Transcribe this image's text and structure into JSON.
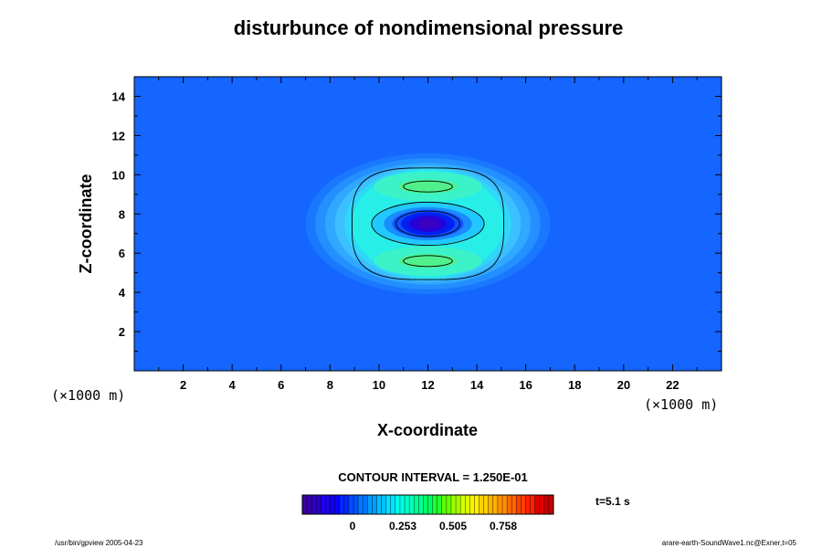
{
  "chart_data": {
    "type": "heatmap",
    "title": "disturbunce of nondimensional pressure",
    "xlabel": "X-coordinate",
    "ylabel": "Z-coordinate",
    "x_unit": "(×1000 m)",
    "y_unit": "(×1000 m)",
    "xlim": [
      0,
      24
    ],
    "ylim": [
      0,
      15
    ],
    "x_ticks": [
      2,
      4,
      6,
      8,
      10,
      12,
      14,
      16,
      18,
      20,
      22
    ],
    "y_ticks": [
      2,
      4,
      6,
      8,
      10,
      12,
      14
    ],
    "x_minor_step": 1,
    "y_minor_step": 1,
    "background_color": "#1565ff",
    "feature": {
      "center": [
        12,
        7.5
      ],
      "colorscale": [
        "#3a00c8",
        "#0000ff",
        "#1565ff",
        "#00a0ff",
        "#00e6e6",
        "#00ffa0",
        "#36ff00",
        "#c8ff00",
        "#ffd700",
        "#ff6a00",
        "#e00000"
      ],
      "layers": [
        {
          "shape": "ellipse",
          "cx": 12,
          "cz": 7.5,
          "rx": 5.0,
          "rz": 3.6,
          "color": "#1a78ff"
        },
        {
          "shape": "ellipse",
          "cx": 12,
          "cz": 7.5,
          "rx": 4.6,
          "rz": 3.35,
          "color": "#2490ff"
        },
        {
          "shape": "ellipse",
          "cx": 12,
          "cz": 7.5,
          "rx": 4.2,
          "rz": 3.1,
          "color": "#30a8ff"
        },
        {
          "shape": "ellipse",
          "cx": 12,
          "cz": 7.5,
          "rx": 3.8,
          "rz": 2.95,
          "color": "#3cc0ff"
        },
        {
          "shape": "ellipse",
          "cx": 12,
          "cz": 7.5,
          "rx": 3.4,
          "rz": 2.85,
          "color": "#30d8f8"
        },
        {
          "shape": "ellipse",
          "cx": 12,
          "cz": 7.5,
          "rx": 3.1,
          "rz": 2.75,
          "color": "#28eee8"
        },
        {
          "shape": "ellipse",
          "cx": 12,
          "cz": 9.4,
          "rx": 2.2,
          "rz": 0.75,
          "color": "#3cf2c8"
        },
        {
          "shape": "ellipse",
          "cx": 12,
          "cz": 5.6,
          "rx": 2.2,
          "rz": 0.75,
          "color": "#3cf2c8"
        },
        {
          "shape": "ellipse",
          "cx": 12,
          "cz": 9.4,
          "rx": 1.2,
          "rz": 0.35,
          "color": "#50f08c"
        },
        {
          "shape": "ellipse",
          "cx": 12,
          "cz": 5.6,
          "rx": 1.2,
          "rz": 0.35,
          "color": "#50f08c"
        },
        {
          "shape": "ellipse",
          "cx": 12,
          "cz": 7.5,
          "rx": 2.3,
          "rz": 1.05,
          "color": "#20c8ff"
        },
        {
          "shape": "ellipse",
          "cx": 12,
          "cz": 7.5,
          "rx": 1.8,
          "rz": 0.85,
          "color": "#1a8cff"
        },
        {
          "shape": "ellipse",
          "cx": 12,
          "cz": 7.5,
          "rx": 1.45,
          "rz": 0.72,
          "color": "#1050ff"
        },
        {
          "shape": "ellipse",
          "cx": 12,
          "cz": 7.5,
          "rx": 1.1,
          "rz": 0.58,
          "color": "#0020f0"
        },
        {
          "shape": "ellipse",
          "cx": 12,
          "cz": 7.5,
          "rx": 0.75,
          "rz": 0.42,
          "color": "#2800d8"
        },
        {
          "shape": "ellipse",
          "cx": 12,
          "cz": 7.5,
          "rx": 0.4,
          "rz": 0.25,
          "color": "#3a00c0"
        }
      ],
      "contours": [
        {
          "shape": "superellipse",
          "cx": 12,
          "cz": 7.5,
          "rx": 3.1,
          "rz": 2.85,
          "n": 3.2
        },
        {
          "shape": "ellipse",
          "cx": 12,
          "cz": 7.5,
          "rx": 2.3,
          "rz": 1.1
        },
        {
          "shape": "ellipse",
          "cx": 12,
          "cz": 7.5,
          "rx": 1.3,
          "rz": 0.65
        },
        {
          "shape": "ellipse",
          "cx": 12,
          "cz": 9.4,
          "rx": 1.0,
          "rz": 0.28
        },
        {
          "shape": "ellipse",
          "cx": 12,
          "cz": 5.6,
          "rx": 1.0,
          "rz": 0.28
        }
      ]
    }
  },
  "contour_interval": "CONTOUR INTERVAL = 1.250E-01",
  "colorbar": {
    "labels": [
      "0",
      "0.253",
      "0.505",
      "0.758"
    ],
    "label_fractions": [
      0.2,
      0.4,
      0.6,
      0.8
    ],
    "colors": [
      "#3a00a0",
      "#2c00c8",
      "#1e00e6",
      "#0a00ff",
      "#0028ff",
      "#0050ff",
      "#0078ff",
      "#009cff",
      "#00c0ff",
      "#00e0ff",
      "#00ffe6",
      "#00ffc0",
      "#00ff96",
      "#00ff64",
      "#20ff30",
      "#60ff00",
      "#a0ff00",
      "#d8ff00",
      "#fff000",
      "#ffd000",
      "#ffb000",
      "#ff9000",
      "#ff6800",
      "#ff4000",
      "#ff2000",
      "#e00000",
      "#c80000"
    ]
  },
  "time_label": "t=5.1 s",
  "footer": {
    "left": "/usr/bin/gpview 2005-04-23",
    "right": "arare-earth-SoundWave1.nc@Exner,t=05"
  }
}
